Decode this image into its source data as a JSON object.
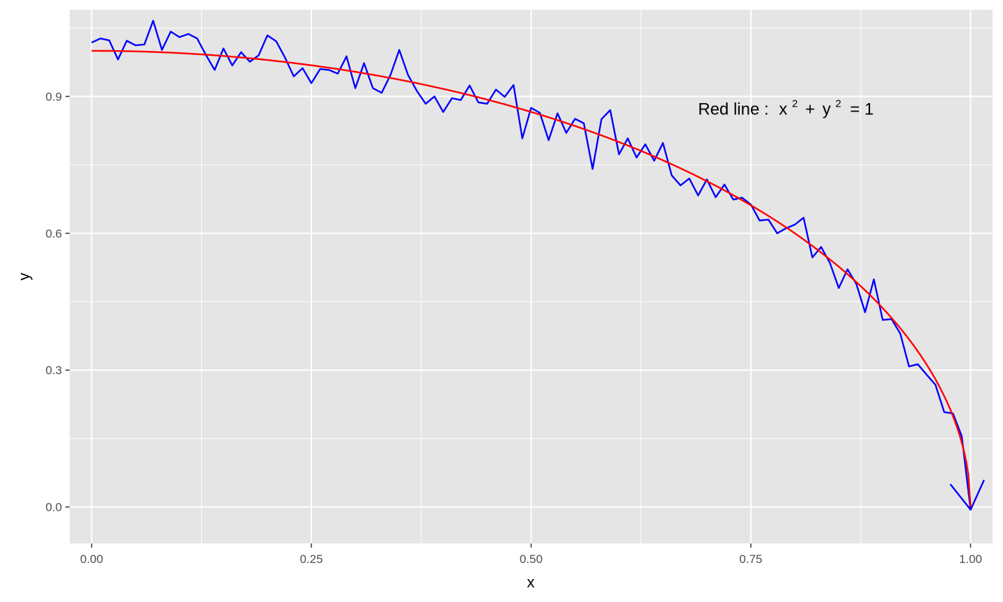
{
  "chart_data": {
    "type": "line",
    "title": "",
    "xlabel": "x",
    "ylabel": "y",
    "xlim": [
      -0.025,
      1.025
    ],
    "ylim": [
      -0.08,
      1.09
    ],
    "x_ticks": [
      0.0,
      0.25,
      0.5,
      0.75,
      1.0
    ],
    "x_tick_labels": [
      "0.00",
      "0.25",
      "0.50",
      "0.75",
      "1.00"
    ],
    "y_ticks": [
      0.0,
      0.3,
      0.6,
      0.9
    ],
    "y_tick_labels": [
      "0.0",
      "0.3",
      "0.6",
      "0.9"
    ],
    "x_minor": [
      0.125,
      0.375,
      0.625,
      0.875
    ],
    "y_minor": [
      0.15,
      0.45,
      0.75,
      1.05
    ],
    "grid": true,
    "legend": "none",
    "panel_background": "#e5e5e5",
    "grid_color": "#ffffff",
    "annotation": {
      "prefix": "Red line :",
      "x_var": "x",
      "exp1": "2",
      "plus": "+",
      "y_var": "y",
      "exp2": "2",
      "equals_one": "= 1",
      "x": 0.69,
      "y": 0.86
    },
    "series": [
      {
        "color": "#0000ff",
        "x": [
          0.0,
          0.01,
          0.02,
          0.03,
          0.04,
          0.05,
          0.06,
          0.07,
          0.08,
          0.09,
          0.1,
          0.11,
          0.12,
          0.13,
          0.14,
          0.15,
          0.16,
          0.17,
          0.18,
          0.19,
          0.2,
          0.21,
          0.22,
          0.23,
          0.24,
          0.25,
          0.26,
          0.27,
          0.28,
          0.29,
          0.3,
          0.31,
          0.32,
          0.33,
          0.34,
          0.35,
          0.36,
          0.37,
          0.38,
          0.39,
          0.4,
          0.41,
          0.42,
          0.43,
          0.44,
          0.45,
          0.46,
          0.47,
          0.48,
          0.49,
          0.5,
          0.51,
          0.52,
          0.53,
          0.54,
          0.55,
          0.56,
          0.57,
          0.58,
          0.59,
          0.6,
          0.61,
          0.62,
          0.63,
          0.64,
          0.65,
          0.66,
          0.67,
          0.68,
          0.69,
          0.7,
          0.71,
          0.72,
          0.73,
          0.74,
          0.75,
          0.76,
          0.77,
          0.78,
          0.79,
          0.8,
          0.81,
          0.82,
          0.83,
          0.84,
          0.85,
          0.86,
          0.87,
          0.88,
          0.89,
          0.9,
          0.91,
          0.92,
          0.93,
          0.94,
          0.95,
          0.96,
          0.97,
          0.98,
          0.99,
          1.0,
          1.015,
          1.0,
          0.977
        ],
        "y": [
          1.018,
          1.027,
          1.023,
          0.981,
          1.022,
          1.012,
          1.014,
          1.066,
          1.002,
          1.042,
          1.03,
          1.037,
          1.027,
          0.991,
          0.958,
          1.005,
          0.968,
          0.997,
          0.976,
          0.99,
          1.034,
          1.021,
          0.985,
          0.944,
          0.962,
          0.929,
          0.96,
          0.958,
          0.95,
          0.988,
          0.918,
          0.973,
          0.918,
          0.908,
          0.947,
          1.002,
          0.947,
          0.912,
          0.884,
          0.9,
          0.866,
          0.896,
          0.892,
          0.924,
          0.887,
          0.884,
          0.915,
          0.899,
          0.925,
          0.808,
          0.875,
          0.864,
          0.804,
          0.863,
          0.82,
          0.851,
          0.841,
          0.741,
          0.85,
          0.87,
          0.773,
          0.808,
          0.766,
          0.795,
          0.759,
          0.798,
          0.727,
          0.705,
          0.72,
          0.683,
          0.718,
          0.679,
          0.707,
          0.674,
          0.678,
          0.663,
          0.628,
          0.63,
          0.6,
          0.611,
          0.619,
          0.634,
          0.547,
          0.57,
          0.535,
          0.48,
          0.521,
          0.489,
          0.427,
          0.499,
          0.41,
          0.412,
          0.38,
          0.308,
          0.313,
          0.29,
          0.268,
          0.208,
          0.205,
          0.155,
          -0.006,
          0.058,
          -0.006,
          0.05
        ]
      },
      {
        "color": "#ff0000",
        "function": "y = sqrt(1 - x^2)",
        "x_range": [
          0.0,
          1.0
        ]
      }
    ]
  }
}
